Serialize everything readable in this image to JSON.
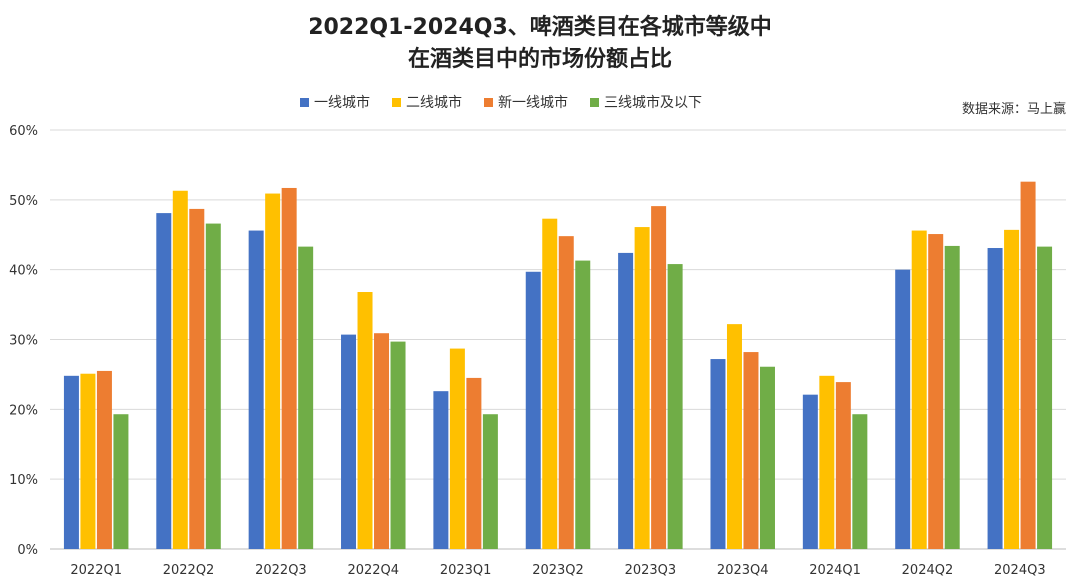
{
  "chart_data": {
    "type": "bar",
    "title_line1": "2022Q1-2024Q3、啤酒类目在各城市等级中",
    "title_line2": "在酒类目中的市场份额占比",
    "source": "数据来源：马上赢",
    "categories": [
      "2022Q1",
      "2022Q2",
      "2022Q3",
      "2022Q4",
      "2023Q1",
      "2023Q2",
      "2023Q3",
      "2023Q4",
      "2024Q1",
      "2024Q2",
      "2024Q3"
    ],
    "series": [
      {
        "name": "一线城市",
        "color": "#4472C4",
        "values": [
          24.8,
          48.1,
          45.6,
          30.7,
          22.6,
          39.7,
          42.4,
          27.2,
          22.1,
          40.0,
          43.1
        ]
      },
      {
        "name": "二线城市",
        "color": "#FFC000",
        "values": [
          25.1,
          51.3,
          50.9,
          36.8,
          28.7,
          47.3,
          46.1,
          32.2,
          24.8,
          45.6,
          45.7
        ]
      },
      {
        "name": "新一线城市",
        "color": "#ED7D31",
        "values": [
          25.5,
          48.7,
          51.7,
          30.9,
          24.5,
          44.8,
          49.1,
          28.2,
          23.9,
          45.1,
          52.6
        ]
      },
      {
        "name": "三线城市及以下",
        "color": "#70AD47",
        "values": [
          19.3,
          46.6,
          43.3,
          29.7,
          19.3,
          41.3,
          40.8,
          26.1,
          19.3,
          43.4,
          43.3
        ]
      }
    ],
    "yticks": [
      "0%",
      "10%",
      "20%",
      "30%",
      "40%",
      "50%",
      "60%"
    ],
    "ylim": [
      0,
      60
    ],
    "grid": true,
    "legend": "top"
  }
}
